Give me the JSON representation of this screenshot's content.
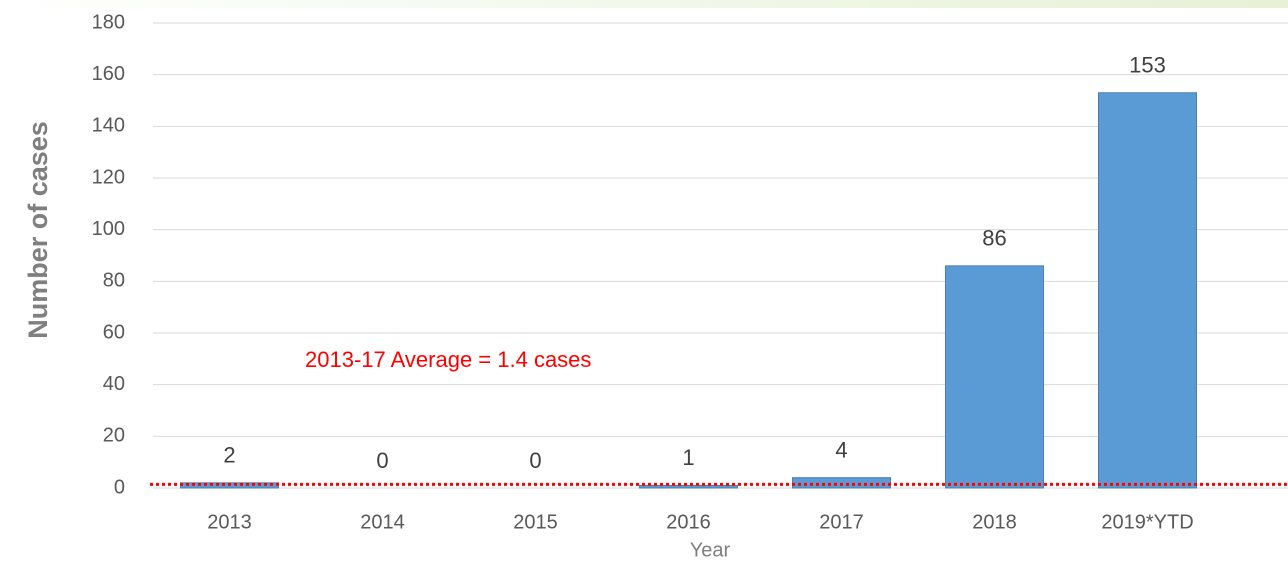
{
  "chart_data": {
    "type": "bar",
    "xlabel": "Year",
    "ylabel": "Number of cases",
    "categories": [
      "2013",
      "2014",
      "2015",
      "2016",
      "2017",
      "2018",
      "2019*YTD"
    ],
    "values": [
      2,
      0,
      0,
      1,
      4,
      86,
      153
    ],
    "color": "#5b9bd5",
    "ylim": [
      0,
      180
    ],
    "yticks": [
      0,
      20,
      40,
      60,
      80,
      100,
      120,
      140,
      160,
      180
    ],
    "grid": true,
    "average": 1.4,
    "average_color": "#ff0000",
    "annotation": "2013-17 Average = 1.4 cases"
  }
}
